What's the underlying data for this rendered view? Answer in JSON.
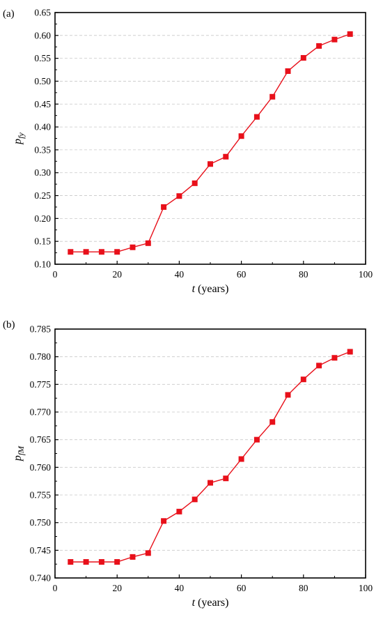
{
  "chart_data": [
    {
      "panel_label": "(a)",
      "type": "line",
      "ylabel": "p",
      "ylabel_sub": "fy",
      "xlabel_var": "t",
      "xlabel_unit": " (years)",
      "xlim": [
        0,
        100
      ],
      "ylim": [
        0.1,
        0.65
      ],
      "xticks": [
        "0",
        "20",
        "40",
        "60",
        "80",
        "100"
      ],
      "yticks": [
        "0.10",
        "0.15",
        "0.20",
        "0.25",
        "0.30",
        "0.35",
        "0.40",
        "0.45",
        "0.50",
        "0.55",
        "0.60",
        "0.65"
      ],
      "grid": "horizontal dashed",
      "color": "#e8101a",
      "x": [
        5,
        10,
        15,
        20,
        25,
        30,
        35,
        40,
        45,
        50,
        55,
        60,
        65,
        70,
        75,
        80,
        85,
        90,
        95
      ],
      "y": [
        0.127,
        0.127,
        0.127,
        0.127,
        0.137,
        0.146,
        0.225,
        0.249,
        0.277,
        0.319,
        0.335,
        0.38,
        0.422,
        0.466,
        0.522,
        0.551,
        0.577,
        0.591,
        0.603
      ]
    },
    {
      "panel_label": "(b)",
      "type": "line",
      "ylabel": "p",
      "ylabel_sub": "fM",
      "xlabel_var": "t",
      "xlabel_unit": " (years)",
      "xlim": [
        0,
        100
      ],
      "ylim": [
        0.74,
        0.785
      ],
      "xticks": [
        "0",
        "20",
        "40",
        "60",
        "80",
        "100"
      ],
      "yticks": [
        "0.740",
        "0.745",
        "0.750",
        "0.755",
        "0.760",
        "0.765",
        "0.770",
        "0.775",
        "0.780",
        "0.785"
      ],
      "grid": "horizontal dashed",
      "color": "#e8101a",
      "x": [
        5,
        10,
        15,
        20,
        25,
        30,
        35,
        40,
        45,
        50,
        55,
        60,
        65,
        70,
        75,
        80,
        85,
        90,
        95
      ],
      "y": [
        0.7429,
        0.7429,
        0.7429,
        0.7429,
        0.7438,
        0.7445,
        0.7503,
        0.752,
        0.7542,
        0.7572,
        0.758,
        0.7615,
        0.765,
        0.7682,
        0.7731,
        0.7759,
        0.7784,
        0.7798,
        0.7809
      ]
    }
  ]
}
